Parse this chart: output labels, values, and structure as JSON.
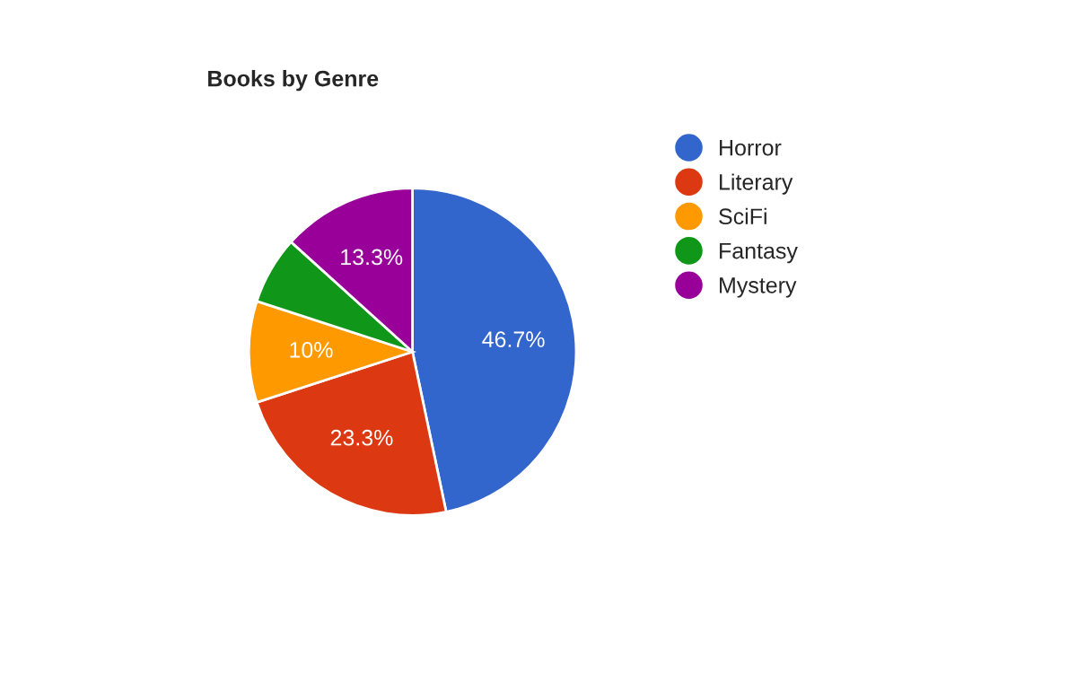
{
  "chart_data": {
    "type": "pie",
    "title": "Books by Genre",
    "categories": [
      "Horror",
      "Literary",
      "SciFi",
      "Fantasy",
      "Mystery"
    ],
    "values": [
      46.7,
      23.3,
      10,
      6.7,
      13.3
    ],
    "value_labels": [
      "46.7%",
      "23.3%",
      "10%",
      null,
      "13.3%"
    ],
    "colors": [
      "#3366cc",
      "#dc3912",
      "#ff9900",
      "#109618",
      "#990099"
    ],
    "legend": "right"
  }
}
